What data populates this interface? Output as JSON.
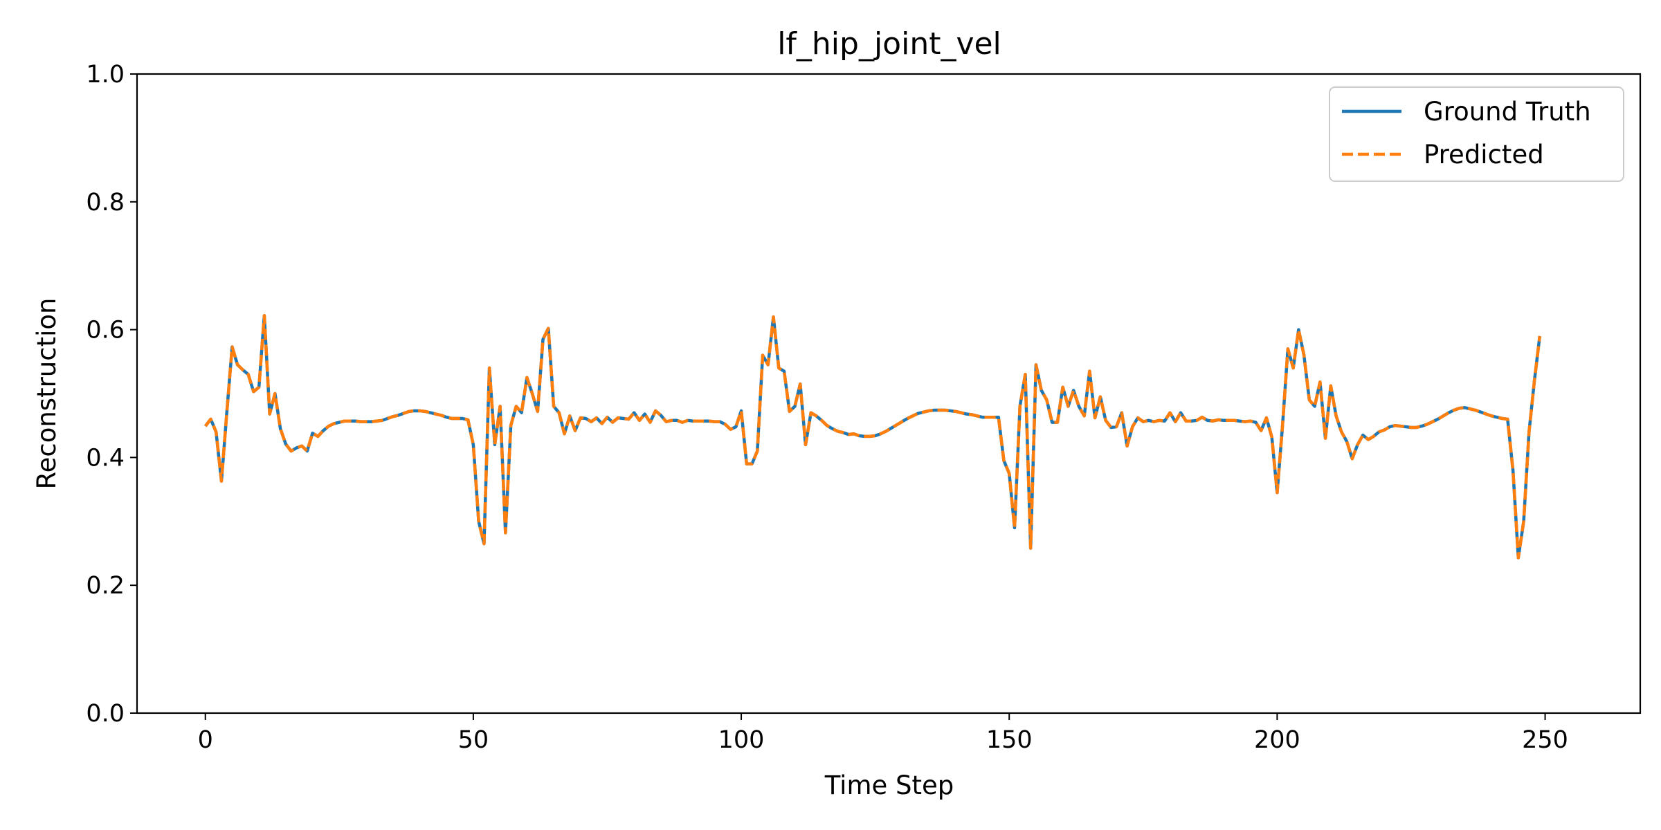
{
  "chart_data": {
    "type": "line",
    "title": "lf_hip_joint_vel",
    "xlabel": "Time Step",
    "ylabel": "Reconstruction",
    "xlim": [
      -12.75,
      267.75
    ],
    "ylim": [
      0.0,
      1.0
    ],
    "xticks": [
      "0",
      "50",
      "100",
      "150",
      "200",
      "250"
    ],
    "xtick_values": [
      0,
      50,
      100,
      150,
      200,
      250
    ],
    "yticks": [
      "0.0",
      "0.2",
      "0.4",
      "0.6",
      "0.8",
      "1.0"
    ],
    "ytick_values": [
      0.0,
      0.2,
      0.4,
      0.6,
      0.8,
      1.0
    ],
    "grid": false,
    "legend_position": "top-right",
    "series": [
      {
        "name": "Ground Truth",
        "color": "#1f77b4",
        "style": "solid",
        "values": [
          0.449,
          0.46,
          0.44,
          0.363,
          0.47,
          0.573,
          0.545,
          0.537,
          0.53,
          0.503,
          0.51,
          0.622,
          0.468,
          0.5,
          0.445,
          0.421,
          0.41,
          0.415,
          0.418,
          0.41,
          0.438,
          0.433,
          0.442,
          0.449,
          0.453,
          0.455,
          0.457,
          0.457,
          0.457,
          0.456,
          0.456,
          0.456,
          0.457,
          0.458,
          0.461,
          0.464,
          0.466,
          0.469,
          0.472,
          0.473,
          0.473,
          0.472,
          0.47,
          0.468,
          0.466,
          0.463,
          0.461,
          0.461,
          0.461,
          0.459,
          0.42,
          0.3,
          0.265,
          0.54,
          0.42,
          0.48,
          0.282,
          0.45,
          0.48,
          0.47,
          0.525,
          0.5,
          0.472,
          0.585,
          0.602,
          0.48,
          0.47,
          0.437,
          0.465,
          0.442,
          0.462,
          0.461,
          0.456,
          0.462,
          0.453,
          0.463,
          0.455,
          0.462,
          0.461,
          0.46,
          0.47,
          0.458,
          0.468,
          0.455,
          0.473,
          0.466,
          0.456,
          0.458,
          0.458,
          0.455,
          0.458,
          0.457,
          0.457,
          0.457,
          0.457,
          0.456,
          0.456,
          0.452,
          0.444,
          0.448,
          0.473,
          0.39,
          0.39,
          0.41,
          0.56,
          0.545,
          0.62,
          0.54,
          0.535,
          0.472,
          0.48,
          0.515,
          0.42,
          0.47,
          0.465,
          0.458,
          0.45,
          0.445,
          0.441,
          0.439,
          0.436,
          0.437,
          0.434,
          0.433,
          0.433,
          0.434,
          0.437,
          0.441,
          0.446,
          0.451,
          0.456,
          0.461,
          0.465,
          0.469,
          0.471,
          0.473,
          0.474,
          0.474,
          0.474,
          0.473,
          0.472,
          0.47,
          0.468,
          0.467,
          0.465,
          0.463,
          0.463,
          0.463,
          0.463,
          0.395,
          0.375,
          0.29,
          0.48,
          0.53,
          0.258,
          0.545,
          0.505,
          0.49,
          0.455,
          0.455,
          0.51,
          0.48,
          0.505,
          0.48,
          0.465,
          0.535,
          0.462,
          0.495,
          0.458,
          0.447,
          0.448,
          0.47,
          0.418,
          0.448,
          0.462,
          0.456,
          0.458,
          0.456,
          0.458,
          0.457,
          0.47,
          0.456,
          0.47,
          0.457,
          0.457,
          0.458,
          0.463,
          0.458,
          0.457,
          0.459,
          0.458,
          0.458,
          0.458,
          0.457,
          0.456,
          0.457,
          0.455,
          0.442,
          0.462,
          0.432,
          0.345,
          0.45,
          0.57,
          0.54,
          0.6,
          0.56,
          0.49,
          0.48,
          0.518,
          0.43,
          0.512,
          0.465,
          0.44,
          0.425,
          0.398,
          0.42,
          0.435,
          0.428,
          0.433,
          0.44,
          0.443,
          0.448,
          0.45,
          0.449,
          0.448,
          0.447,
          0.447,
          0.449,
          0.452,
          0.456,
          0.46,
          0.465,
          0.47,
          0.474,
          0.477,
          0.478,
          0.476,
          0.474,
          0.471,
          0.468,
          0.465,
          0.463,
          0.461,
          0.46,
          0.38,
          0.243,
          0.3,
          0.44,
          0.52,
          0.59
        ]
      },
      {
        "name": "Predicted",
        "color": "#ff7f0e",
        "style": "dashed",
        "values": [
          0.449,
          0.46,
          0.44,
          0.363,
          0.47,
          0.573,
          0.545,
          0.537,
          0.53,
          0.503,
          0.51,
          0.622,
          0.468,
          0.5,
          0.445,
          0.421,
          0.41,
          0.415,
          0.418,
          0.41,
          0.438,
          0.433,
          0.442,
          0.449,
          0.453,
          0.455,
          0.457,
          0.457,
          0.457,
          0.456,
          0.456,
          0.456,
          0.457,
          0.458,
          0.461,
          0.464,
          0.466,
          0.469,
          0.472,
          0.473,
          0.473,
          0.472,
          0.47,
          0.468,
          0.466,
          0.463,
          0.461,
          0.461,
          0.461,
          0.459,
          0.42,
          0.3,
          0.265,
          0.54,
          0.42,
          0.48,
          0.282,
          0.45,
          0.48,
          0.47,
          0.525,
          0.5,
          0.472,
          0.585,
          0.602,
          0.48,
          0.47,
          0.437,
          0.465,
          0.442,
          0.462,
          0.461,
          0.456,
          0.462,
          0.453,
          0.463,
          0.455,
          0.462,
          0.461,
          0.46,
          0.47,
          0.458,
          0.468,
          0.455,
          0.473,
          0.466,
          0.456,
          0.458,
          0.458,
          0.455,
          0.458,
          0.457,
          0.457,
          0.457,
          0.457,
          0.456,
          0.456,
          0.452,
          0.444,
          0.448,
          0.473,
          0.39,
          0.39,
          0.41,
          0.56,
          0.545,
          0.62,
          0.54,
          0.535,
          0.472,
          0.48,
          0.515,
          0.42,
          0.47,
          0.465,
          0.458,
          0.45,
          0.445,
          0.441,
          0.439,
          0.436,
          0.437,
          0.434,
          0.433,
          0.433,
          0.434,
          0.437,
          0.441,
          0.446,
          0.451,
          0.456,
          0.461,
          0.465,
          0.469,
          0.471,
          0.473,
          0.474,
          0.474,
          0.474,
          0.473,
          0.472,
          0.47,
          0.468,
          0.467,
          0.465,
          0.463,
          0.463,
          0.463,
          0.463,
          0.395,
          0.375,
          0.29,
          0.48,
          0.53,
          0.258,
          0.545,
          0.505,
          0.49,
          0.455,
          0.455,
          0.51,
          0.48,
          0.505,
          0.48,
          0.465,
          0.535,
          0.462,
          0.495,
          0.458,
          0.447,
          0.448,
          0.47,
          0.418,
          0.448,
          0.462,
          0.456,
          0.458,
          0.456,
          0.458,
          0.457,
          0.47,
          0.456,
          0.47,
          0.457,
          0.457,
          0.458,
          0.463,
          0.458,
          0.457,
          0.459,
          0.458,
          0.458,
          0.458,
          0.457,
          0.456,
          0.457,
          0.455,
          0.442,
          0.462,
          0.432,
          0.345,
          0.45,
          0.57,
          0.54,
          0.6,
          0.56,
          0.49,
          0.48,
          0.518,
          0.43,
          0.512,
          0.465,
          0.44,
          0.425,
          0.398,
          0.42,
          0.435,
          0.428,
          0.433,
          0.44,
          0.443,
          0.448,
          0.45,
          0.449,
          0.448,
          0.447,
          0.447,
          0.449,
          0.452,
          0.456,
          0.46,
          0.465,
          0.47,
          0.474,
          0.477,
          0.478,
          0.476,
          0.474,
          0.471,
          0.468,
          0.465,
          0.463,
          0.461,
          0.46,
          0.38,
          0.243,
          0.3,
          0.44,
          0.52,
          0.59
        ]
      }
    ]
  }
}
